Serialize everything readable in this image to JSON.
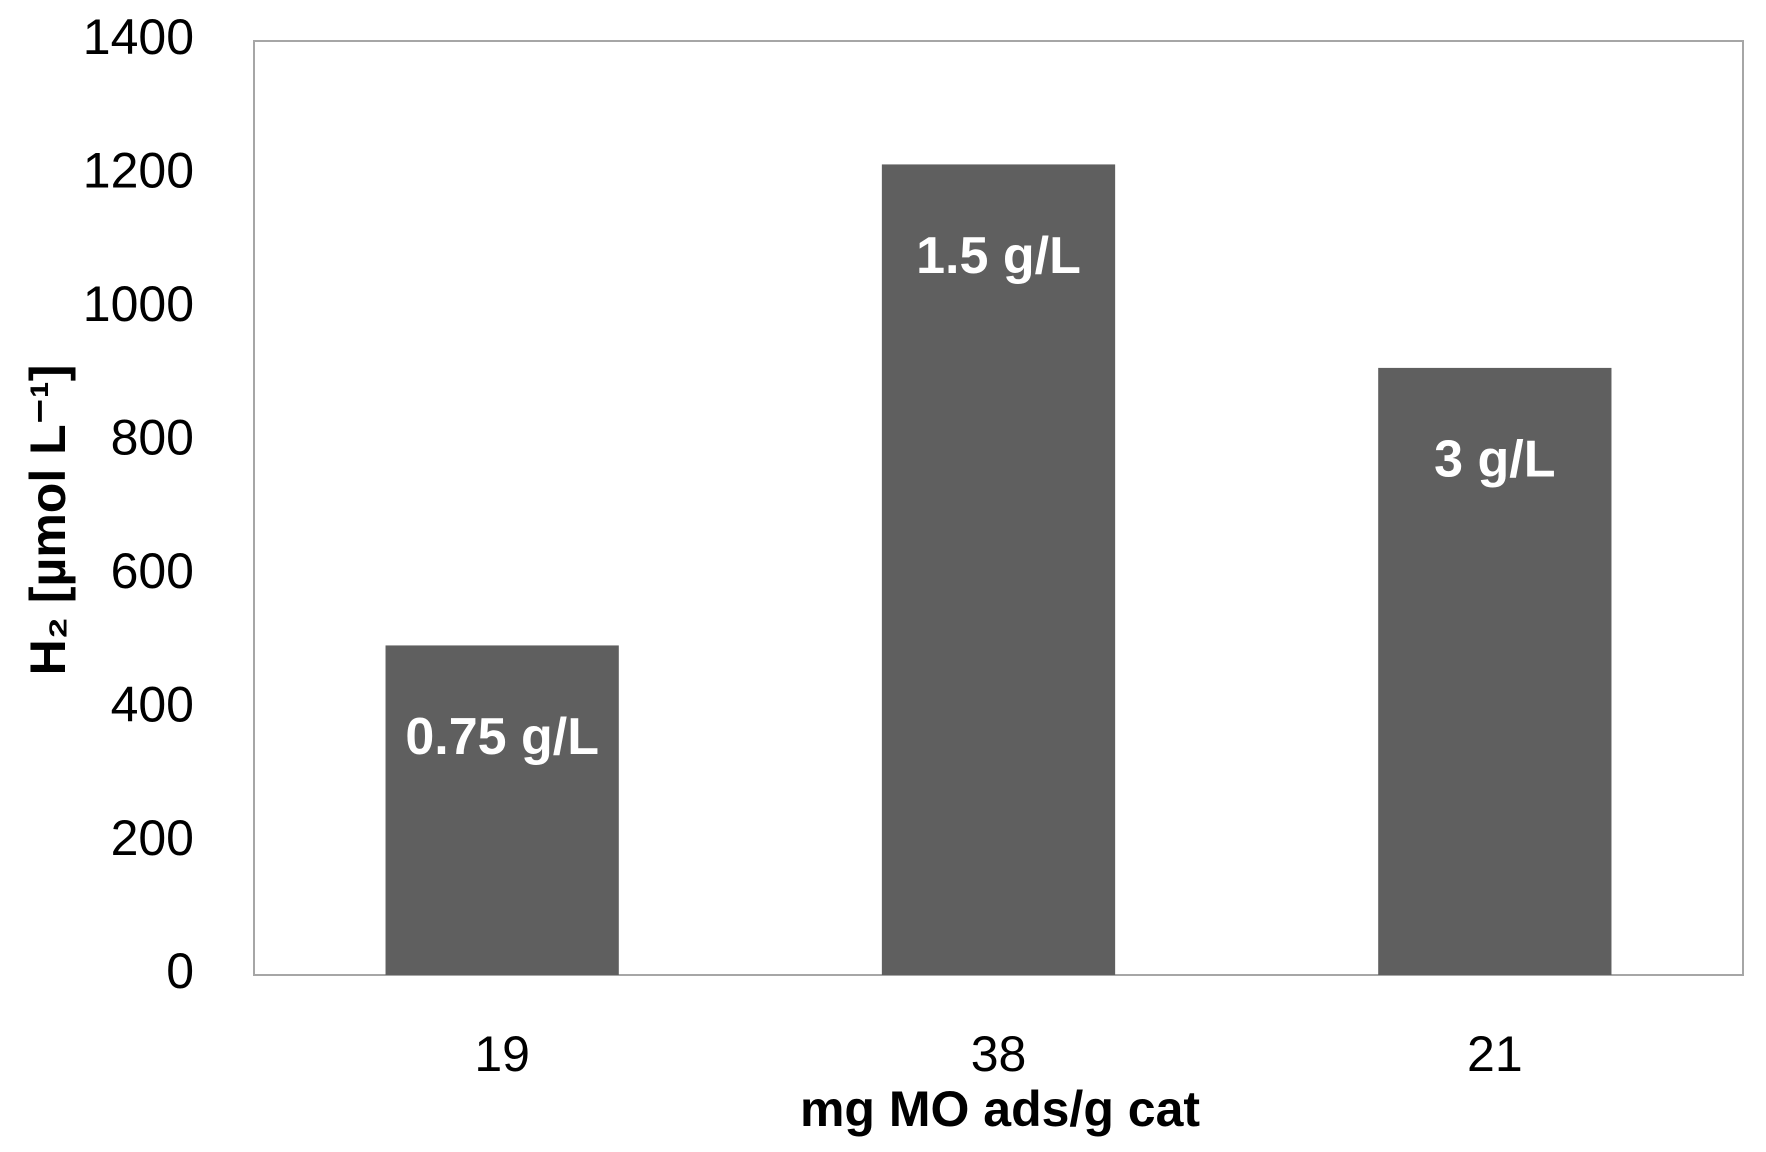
{
  "chart_data": {
    "type": "bar",
    "x_label": "mg MO ads/g cat",
    "y_label": "H₂ [µmol L⁻¹]",
    "categories": [
      "19",
      "38",
      "21"
    ],
    "values": [
      494,
      1215,
      910
    ],
    "annotations": [
      "0.75 g/L",
      "1.5 g/L",
      "3 g/L"
    ],
    "color": "#5f5f5f",
    "ylim": [
      0,
      1400
    ],
    "yticks": [
      0,
      200,
      400,
      600,
      800,
      1000,
      1200,
      1400
    ],
    "grid": false
  }
}
